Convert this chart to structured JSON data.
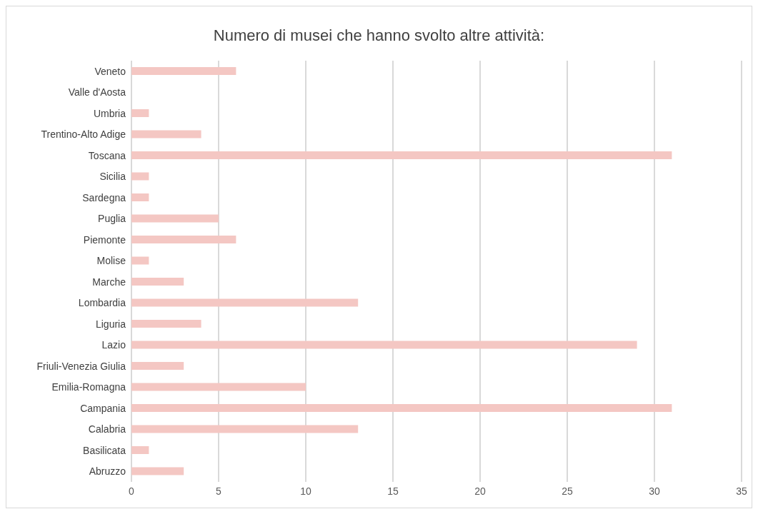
{
  "chart_data": {
    "type": "bar",
    "orientation": "horizontal",
    "title": "Numero di musei che hanno svolto altre attività:",
    "categories": [
      "Veneto",
      "Valle d'Aosta",
      "Umbria",
      "Trentino-Alto Adige",
      "Toscana",
      "Sicilia",
      "Sardegna",
      "Puglia",
      "Piemonte",
      "Molise",
      "Marche",
      "Lombardia",
      "Liguria",
      "Lazio",
      "Friuli-Venezia Giulia",
      "Emilia-Romagna",
      "Campania",
      "Calabria",
      "Basilicata",
      "Abruzzo"
    ],
    "values": [
      6,
      0,
      1,
      4,
      31,
      1,
      1,
      5,
      6,
      1,
      3,
      13,
      4,
      29,
      3,
      10,
      31,
      13,
      1,
      3
    ],
    "color": "#f4c7c3",
    "xlim": [
      0,
      35
    ],
    "xticks": [
      0,
      5,
      10,
      15,
      20,
      25,
      30,
      35
    ],
    "grid": "x"
  }
}
